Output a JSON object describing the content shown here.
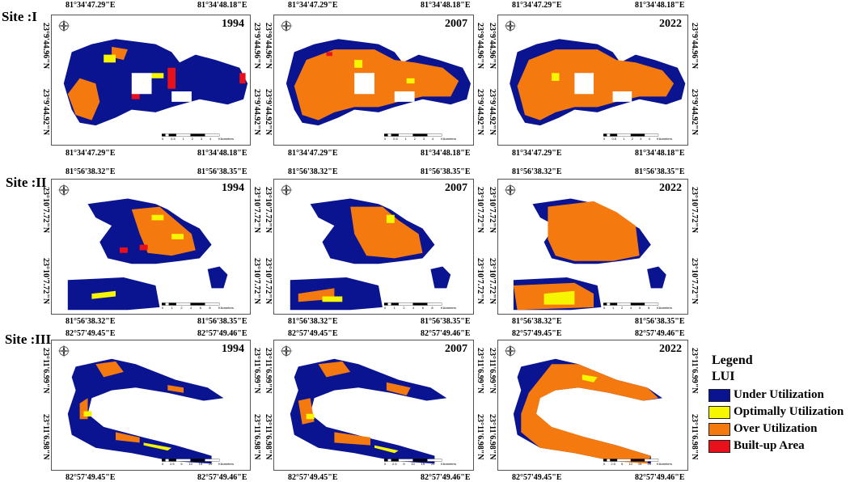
{
  "sites": [
    {
      "label": "Site :I",
      "top_left_lon": "81°34'47.29\"E",
      "top_right_lon": "81°34'48.18\"E",
      "bottom_left_lon": "81°34'47.29\"E",
      "bottom_right_lon": "81°34'48.18\"E",
      "left_top_lat": "23°9'44.96\"N",
      "left_bottom_lat": "23°9'44.92\"N",
      "right_top_lat": "23°9'44.96\"N",
      "right_bottom_lat": "23°9'44.92\"N",
      "scale_ticks": [
        "0",
        "0.5",
        "1",
        "2",
        "3",
        "4",
        "Kilometers"
      ]
    },
    {
      "label": "Site :II",
      "top_left_lon": "81°56'38.32\"E",
      "top_right_lon": "81°56'38.35\"E",
      "bottom_left_lon": "81°56'38.32\"E",
      "bottom_right_lon": "81°56'38.35\"E",
      "left_top_lat": "23°10'7.72\"N",
      "left_bottom_lat": "23°10'7.72\"N",
      "right_top_lat": "23°10'7.72\"N",
      "right_bottom_lat": "23°10'7.72\"N",
      "scale_ticks": [
        "0",
        "1",
        "2",
        "4",
        "6",
        "8",
        "Kilometers"
      ]
    },
    {
      "label": "Site :III",
      "top_left_lon": "82°57'49.45\"E",
      "top_right_lon": "82°57'49.46\"E",
      "bottom_left_lon": "82°57'49.45\"E",
      "bottom_right_lon": "82°57'49.46\"E",
      "left_top_lat": "23°11'6.99\"N",
      "left_bottom_lat": "23°11'6.98\"N",
      "right_top_lat": "23°11'6.99\"N",
      "right_bottom_lat": "23°11'6.98\"N",
      "scale_ticks": [
        "0",
        "2.5",
        "5",
        "10",
        "15",
        "20",
        "Kilometers"
      ]
    }
  ],
  "years": [
    "1994",
    "2007",
    "2022"
  ],
  "legend": {
    "title": "Legend",
    "subtitle": "LUI",
    "items": [
      {
        "label": "Under Utilization",
        "color": "#0a1490"
      },
      {
        "label": "Optimally Utilization",
        "color": "#f6f600"
      },
      {
        "label": "Over Utilization",
        "color": "#f47a10"
      },
      {
        "label": "Built-up Area",
        "color": "#e8101a"
      }
    ]
  },
  "colors": {
    "under": "#0a1490",
    "optimal": "#f6f600",
    "over": "#f47a10",
    "built": "#e8101a"
  }
}
